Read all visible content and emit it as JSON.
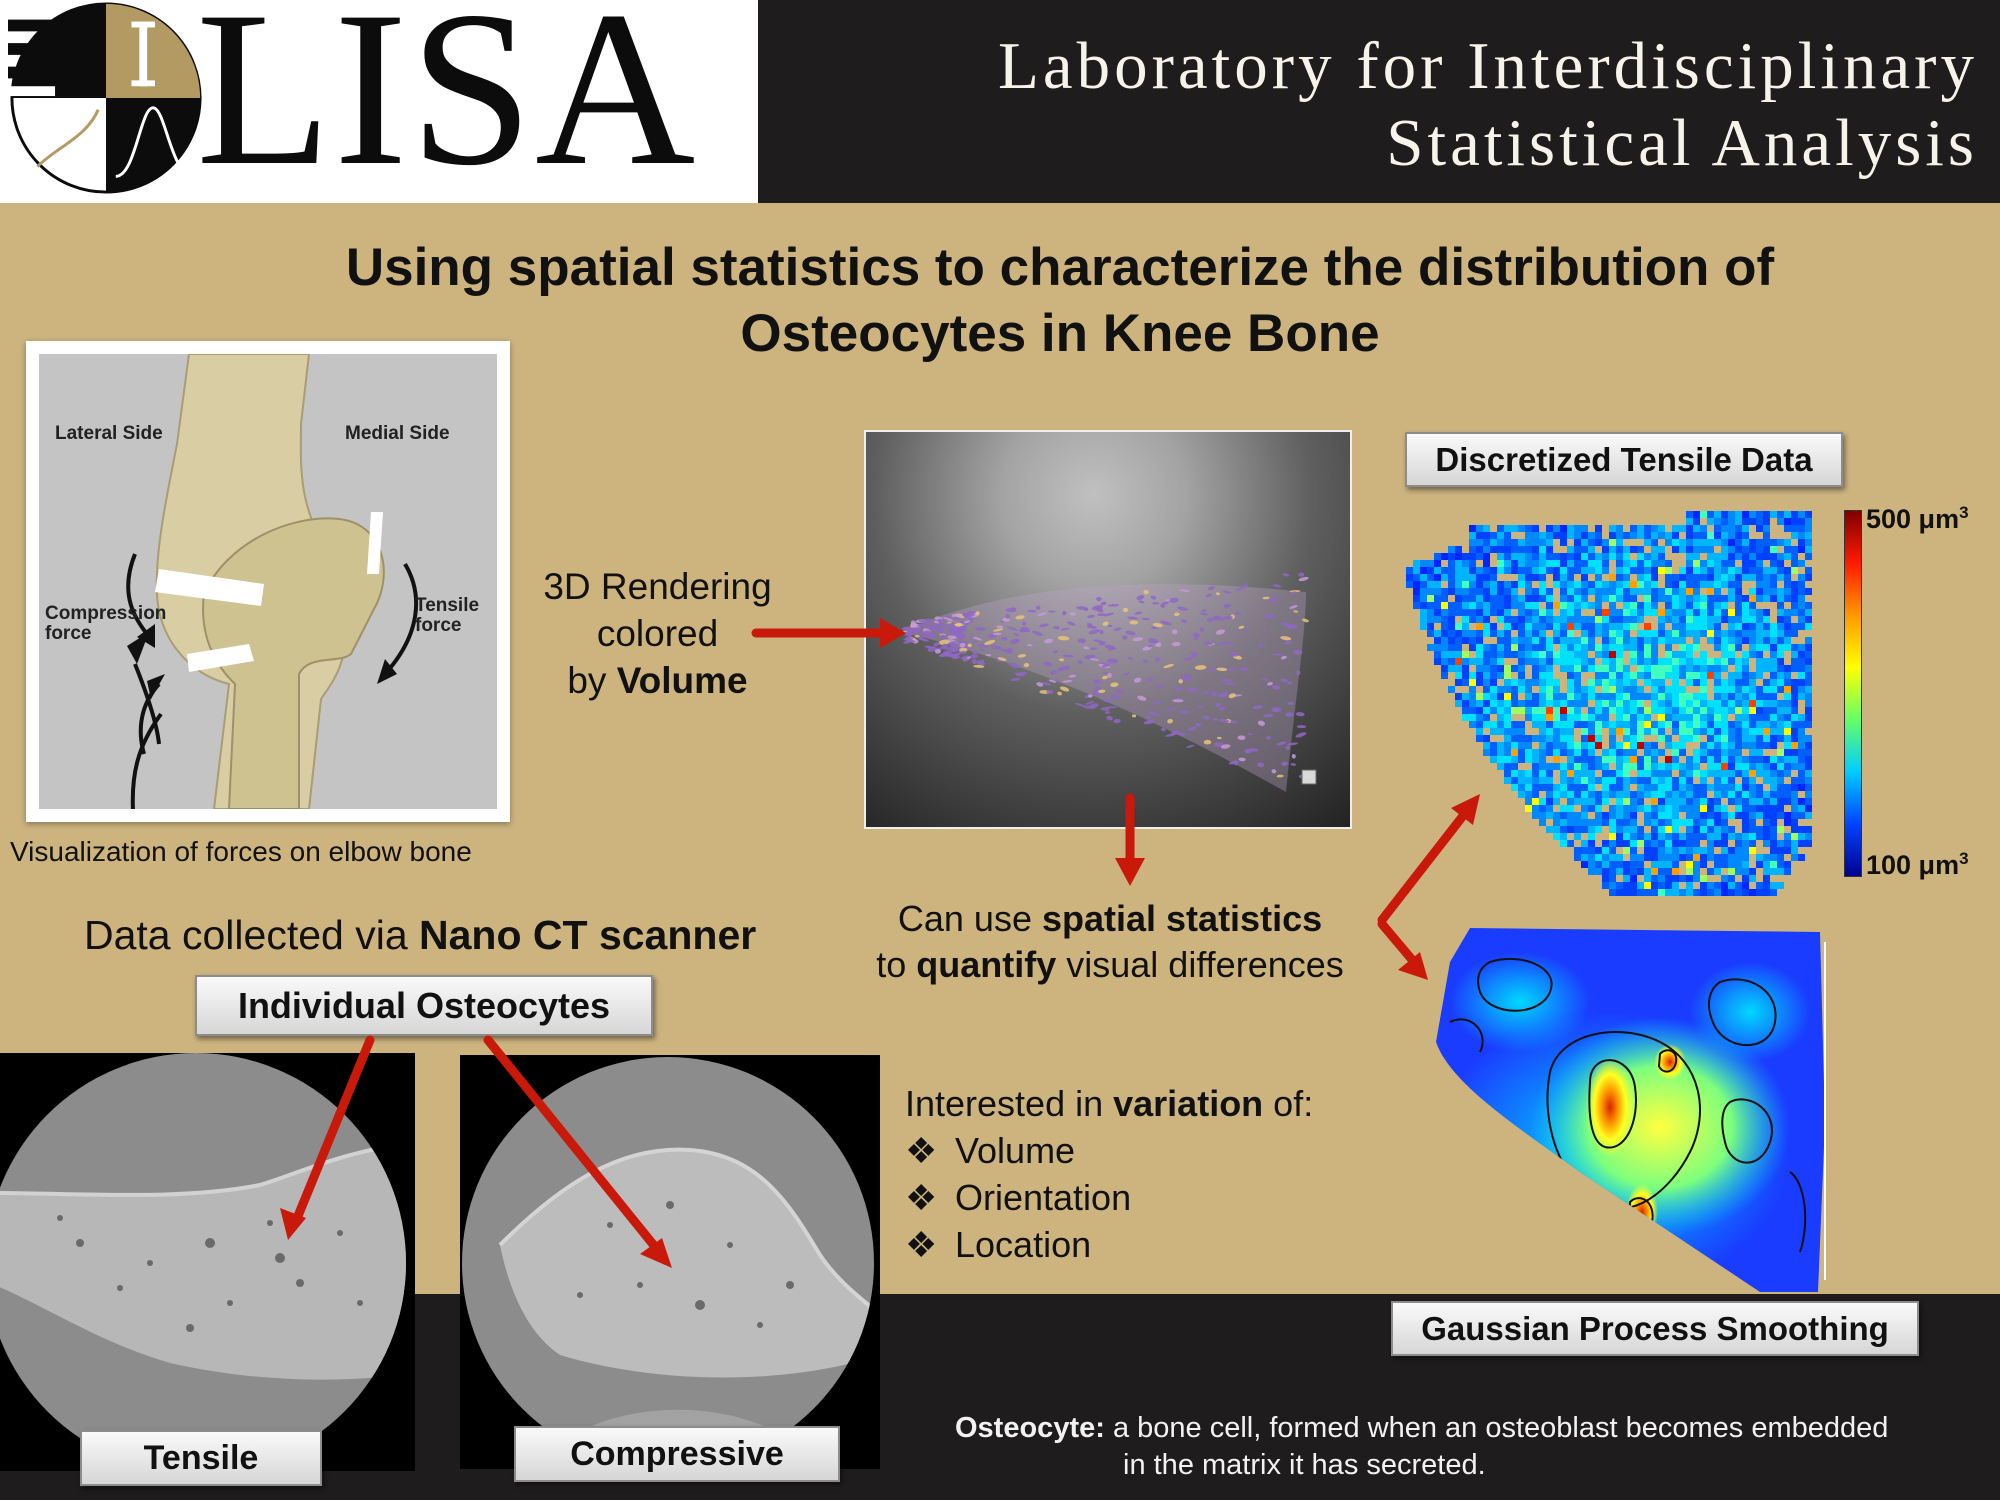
{
  "header": {
    "logo_text": "LISA",
    "lab_name_line1": "Laboratory for Interdisciplinary",
    "lab_name_line2": "Statistical Analysis"
  },
  "title": {
    "line1": "Using spatial statistics to characterize the distribution of",
    "line2": "Osteocytes in Knee Bone"
  },
  "elbow_figure": {
    "lateral_label": "Lateral Side",
    "medial_label": "Medial Side",
    "compression_label_line1": "Compression",
    "compression_label_line2": "force",
    "tensile_label_line1": "Tensile",
    "tensile_label_line2": "force",
    "caption": "Visualization of forces on elbow bone"
  },
  "collection": {
    "prefix": "Data collected via ",
    "bold": "Nano CT scanner"
  },
  "labels": {
    "individual_osteocytes": "Individual Osteocytes",
    "tensile": "Tensile",
    "compressive": "Compressive",
    "discretized": "Discretized Tensile Data",
    "gaussian": "Gaussian Process Smoothing"
  },
  "rendering": {
    "line1": "3D Rendering",
    "line2": "colored",
    "line3_prefix": "by ",
    "line3_bold": "Volume"
  },
  "spatial": {
    "line1_prefix": "Can use ",
    "line1_bold": "spatial statistics",
    "line2_prefix": "to ",
    "line2_bold": "quantify",
    "line2_suffix": " visual differences"
  },
  "variation": {
    "intro_prefix": "Interested in ",
    "intro_bold": "variation",
    "intro_suffix": " of:",
    "bullet_symbol": "❖",
    "items": [
      "Volume",
      "Orientation",
      "Location"
    ]
  },
  "colorbar": {
    "max_value": "500 μm",
    "min_value": "100 μm",
    "exponent": "3"
  },
  "definition": {
    "term": "Osteocyte:",
    "line1": " a bone cell, formed when an osteoblast becomes embedded",
    "line2": "in the matrix it has secreted."
  },
  "colors": {
    "background_tan": "#cdb47f",
    "band_dark": "#1e1c1c",
    "arrow_red": "#c8190a",
    "logo_gold": "#b39a63"
  }
}
